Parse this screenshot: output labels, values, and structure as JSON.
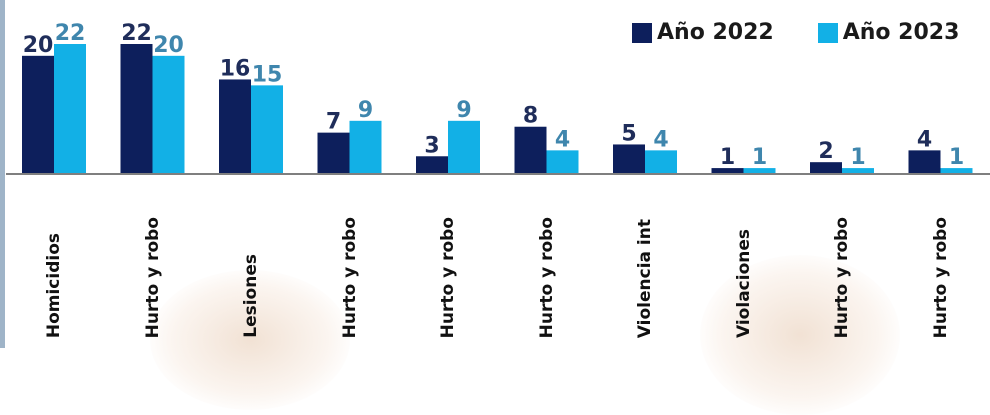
{
  "legend": {
    "series_1": "Año 2022",
    "series_2": "Año 2023"
  },
  "colors": {
    "series_1": "#0d1f5c",
    "series_2": "#12b0e6",
    "label_1": "#1f2d5a",
    "label_2": "#3f86ad",
    "axis": "#7f7f7f",
    "frame": "#9fb4c8"
  },
  "chart_data": {
    "type": "bar",
    "categories": [
      "Homicidios",
      "Hurto y robo",
      "Lesiones",
      "Hurto y robo",
      "Hurto y robo",
      "Hurto y robo",
      "Violencia int",
      "Violaciones",
      "Hurto y robo",
      "Hurto y robo"
    ],
    "series": [
      {
        "name": "Año 2022",
        "values": [
          20,
          22,
          16,
          7,
          3,
          8,
          5,
          1,
          2,
          4
        ]
      },
      {
        "name": "Año 2023",
        "values": [
          22,
          20,
          15,
          9,
          9,
          4,
          4,
          1,
          1,
          1
        ]
      }
    ],
    "ylim": [
      0,
      22
    ],
    "grid": false,
    "legend_position": "top-right"
  }
}
